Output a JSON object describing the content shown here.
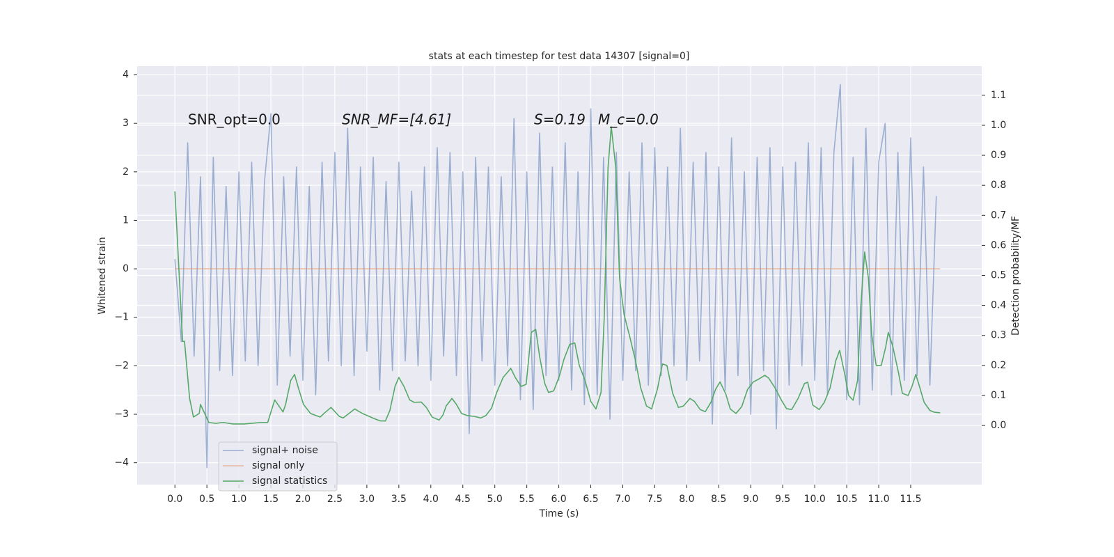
{
  "chart_data": {
    "type": "line",
    "title": "stats at each timestep for test data 14307 [signal=0]",
    "xlabel": "Time (s)",
    "ylabel": "Whitened strain",
    "y2label": "Detection probability/MF",
    "annotations": [
      "SNR_opt=0.0",
      "SNR_MF=[4.61]",
      "S=0.19",
      "M_c=0.0"
    ],
    "xlim": [
      -0.59,
      12.61
    ],
    "ylim": [
      -4.45,
      4.18
    ],
    "y2lim": [
      -0.197,
      1.197
    ],
    "xticks": [
      {
        "value": 0,
        "label": "0.0"
      },
      0.5,
      {
        "value": 1,
        "label": "1.0"
      },
      1.5,
      {
        "value": 2,
        "label": "2.0"
      },
      2.5,
      {
        "value": 3,
        "label": "3.0"
      },
      3.5,
      {
        "value": 4,
        "label": "4.0"
      },
      4.5,
      {
        "value": 5,
        "label": "5.0"
      },
      5.5,
      {
        "value": 6,
        "label": "6.0"
      },
      6.5,
      {
        "value": 7,
        "label": "7.0"
      },
      7.5,
      {
        "value": 8,
        "label": "8.0"
      },
      8.5,
      {
        "value": 9,
        "label": "9.0"
      },
      9.5,
      {
        "value": 10,
        "label": "10.0"
      },
      10.5,
      {
        "value": 11,
        "label": "11.0"
      },
      11.5
    ],
    "yticks": [
      {
        "value": -4,
        "label": "−4"
      },
      {
        "value": -3,
        "label": "−3"
      },
      {
        "value": -2,
        "label": "−2"
      },
      {
        "value": -1,
        "label": "−1"
      },
      0,
      1,
      2,
      3,
      4
    ],
    "y2ticks": [
      {
        "value": 0,
        "label": "0.0"
      },
      0.1,
      0.2,
      0.3,
      0.4,
      0.5,
      0.6,
      0.7,
      0.8,
      0.9,
      {
        "value": 1,
        "label": "1.0"
      },
      1.1
    ],
    "grid": true,
    "legend": "lower left",
    "series": [
      {
        "name": "signal+ noise",
        "color": "#4c72b0",
        "alpha": 0.5,
        "x": [
          0.0,
          0.1,
          0.2,
          0.3,
          0.4,
          0.5,
          0.6,
          0.7,
          0.8,
          0.9,
          1.0,
          1.1,
          1.2,
          1.3,
          1.4,
          1.5,
          1.6,
          1.7,
          1.8,
          1.9,
          2.0,
          2.1,
          2.2,
          2.3,
          2.4,
          2.5,
          2.6,
          2.7,
          2.8,
          2.9,
          3.0,
          3.1,
          3.2,
          3.3,
          3.4,
          3.5,
          3.6,
          3.7,
          3.8,
          3.9,
          4.0,
          4.1,
          4.2,
          4.3,
          4.4,
          4.5,
          4.6,
          4.7,
          4.8,
          4.9,
          5.0,
          5.1,
          5.2,
          5.3,
          5.4,
          5.5,
          5.6,
          5.7,
          5.8,
          5.9,
          6.0,
          6.1,
          6.2,
          6.3,
          6.4,
          6.5,
          6.6,
          6.7,
          6.8,
          6.9,
          7.0,
          7.1,
          7.2,
          7.3,
          7.4,
          7.5,
          7.6,
          7.7,
          7.8,
          7.9,
          8.0,
          8.1,
          8.2,
          8.3,
          8.4,
          8.5,
          8.6,
          8.7,
          8.8,
          8.9,
          9.0,
          9.1,
          9.2,
          9.3,
          9.4,
          9.5,
          9.6,
          9.7,
          9.8,
          9.9,
          10.0,
          10.1,
          10.2,
          10.3,
          10.4,
          10.5,
          10.6,
          10.7,
          10.8,
          10.9,
          11.0,
          11.1,
          11.2,
          11.3,
          11.4,
          11.5,
          11.6,
          11.7,
          11.8,
          11.9
        ],
        "values": [
          0.2,
          -1.5,
          2.6,
          -1.8,
          1.9,
          -4.1,
          2.3,
          -2.1,
          1.7,
          -2.2,
          2.0,
          -1.9,
          2.2,
          -2.0,
          1.8,
          3.2,
          -2.4,
          1.9,
          -1.8,
          2.1,
          -2.3,
          1.7,
          -2.6,
          2.2,
          -1.9,
          2.4,
          -2.0,
          2.9,
          -2.2,
          2.1,
          -1.7,
          2.3,
          -2.5,
          1.8,
          -2.1,
          2.2,
          -1.9,
          1.6,
          -2.0,
          2.1,
          -2.3,
          2.5,
          -1.8,
          2.4,
          -2.2,
          2.0,
          -3.4,
          2.3,
          -1.9,
          2.1,
          -2.4,
          1.9,
          -2.0,
          3.1,
          -2.7,
          2.0,
          -2.9,
          2.8,
          -2.2,
          2.1,
          -2.3,
          2.6,
          -2.5,
          2.0,
          -2.8,
          3.3,
          -2.6,
          2.3,
          -3.1,
          2.4,
          -2.3,
          2.0,
          -2.1,
          2.6,
          -2.4,
          2.5,
          -2.2,
          2.1,
          -2.0,
          2.9,
          -2.3,
          2.2,
          -1.9,
          2.4,
          -3.2,
          2.1,
          -2.5,
          2.7,
          -2.2,
          2.0,
          -3.0,
          2.3,
          -2.1,
          2.5,
          -3.3,
          2.1,
          -2.4,
          2.2,
          -2.0,
          2.6,
          -2.3,
          2.5,
          -2.6,
          2.4,
          3.8,
          -2.7,
          2.3,
          -2.8,
          2.9,
          -2.5,
          2.2,
          3.0,
          -2.6,
          2.4,
          -2.3,
          2.7,
          -2.2,
          2.1,
          -2.4,
          1.5
        ]
      },
      {
        "name": "signal only",
        "color": "#dd8452",
        "alpha": 0.5,
        "x": [
          0.0,
          11.96
        ],
        "values": [
          0,
          0
        ]
      },
      {
        "name": "signal statistics",
        "color": "#55a868",
        "axis": "y2",
        "x": [
          0,
          0.12,
          0.15,
          0.23,
          0.29,
          0.38,
          0.4,
          0.53,
          0.64,
          0.75,
          0.91,
          1.08,
          1.19,
          1.35,
          1.45,
          1.56,
          1.69,
          1.73,
          1.81,
          1.87,
          1.93,
          2.01,
          2.12,
          2.27,
          2.33,
          2.44,
          2.57,
          2.63,
          2.72,
          2.81,
          2.93,
          3.09,
          3.21,
          3.29,
          3.36,
          3.44,
          3.5,
          3.58,
          3.67,
          3.74,
          3.85,
          3.93,
          4.02,
          4.13,
          4.19,
          4.24,
          4.33,
          4.4,
          4.48,
          4.57,
          4.68,
          4.78,
          4.86,
          4.95,
          5.03,
          5.13,
          5.25,
          5.32,
          5.41,
          5.49,
          5.57,
          5.64,
          5.7,
          5.78,
          5.84,
          5.92,
          6.01,
          6.08,
          6.17,
          6.25,
          6.32,
          6.41,
          6.5,
          6.58,
          6.66,
          6.71,
          6.77,
          6.82,
          6.89,
          6.95,
          7.02,
          7.11,
          7.2,
          7.28,
          7.37,
          7.45,
          7.54,
          7.62,
          7.69,
          7.78,
          7.87,
          7.95,
          8.05,
          8.12,
          8.21,
          8.29,
          8.38,
          8.45,
          8.52,
          8.61,
          8.68,
          8.77,
          8.86,
          8.95,
          9.04,
          9.13,
          9.22,
          9.28,
          9.38,
          9.48,
          9.56,
          9.64,
          9.74,
          9.84,
          9.89,
          9.97,
          10.07,
          10.15,
          10.24,
          10.33,
          10.39,
          10.47,
          10.53,
          10.6,
          10.67,
          10.72,
          10.78,
          10.84,
          10.89,
          10.96,
          11.04,
          11.11,
          11.15,
          11.22,
          11.31,
          11.37,
          11.46,
          11.52,
          11.58,
          11.64,
          11.71,
          11.8,
          11.87,
          11.96
        ],
        "values": [
          0.78,
          0.28,
          0.28,
          0.09,
          0.028,
          0.04,
          0.07,
          0.01,
          0.007,
          0.01,
          0.005,
          0.005,
          0.007,
          0.01,
          0.01,
          0.085,
          0.045,
          0.07,
          0.15,
          0.17,
          0.125,
          0.07,
          0.04,
          0.028,
          0.04,
          0.06,
          0.03,
          0.025,
          0.04,
          0.055,
          0.04,
          0.025,
          0.015,
          0.015,
          0.05,
          0.13,
          0.16,
          0.13,
          0.085,
          0.077,
          0.078,
          0.06,
          0.028,
          0.018,
          0.035,
          0.065,
          0.09,
          0.07,
          0.04,
          0.033,
          0.03,
          0.025,
          0.033,
          0.058,
          0.11,
          0.16,
          0.19,
          0.16,
          0.13,
          0.137,
          0.31,
          0.32,
          0.23,
          0.14,
          0.11,
          0.115,
          0.165,
          0.22,
          0.27,
          0.275,
          0.2,
          0.15,
          0.08,
          0.055,
          0.11,
          0.36,
          0.86,
          0.995,
          0.86,
          0.49,
          0.37,
          0.295,
          0.215,
          0.125,
          0.065,
          0.055,
          0.12,
          0.205,
          0.2,
          0.107,
          0.06,
          0.065,
          0.09,
          0.08,
          0.053,
          0.046,
          0.078,
          0.12,
          0.145,
          0.105,
          0.055,
          0.04,
          0.063,
          0.12,
          0.145,
          0.155,
          0.167,
          0.158,
          0.125,
          0.084,
          0.056,
          0.053,
          0.09,
          0.14,
          0.144,
          0.068,
          0.053,
          0.077,
          0.125,
          0.216,
          0.25,
          0.17,
          0.1,
          0.084,
          0.15,
          0.397,
          0.578,
          0.49,
          0.304,
          0.2,
          0.2,
          0.262,
          0.31,
          0.264,
          0.175,
          0.107,
          0.1,
          0.13,
          0.17,
          0.128,
          0.077,
          0.05,
          0.044,
          0.042
        ]
      }
    ]
  }
}
